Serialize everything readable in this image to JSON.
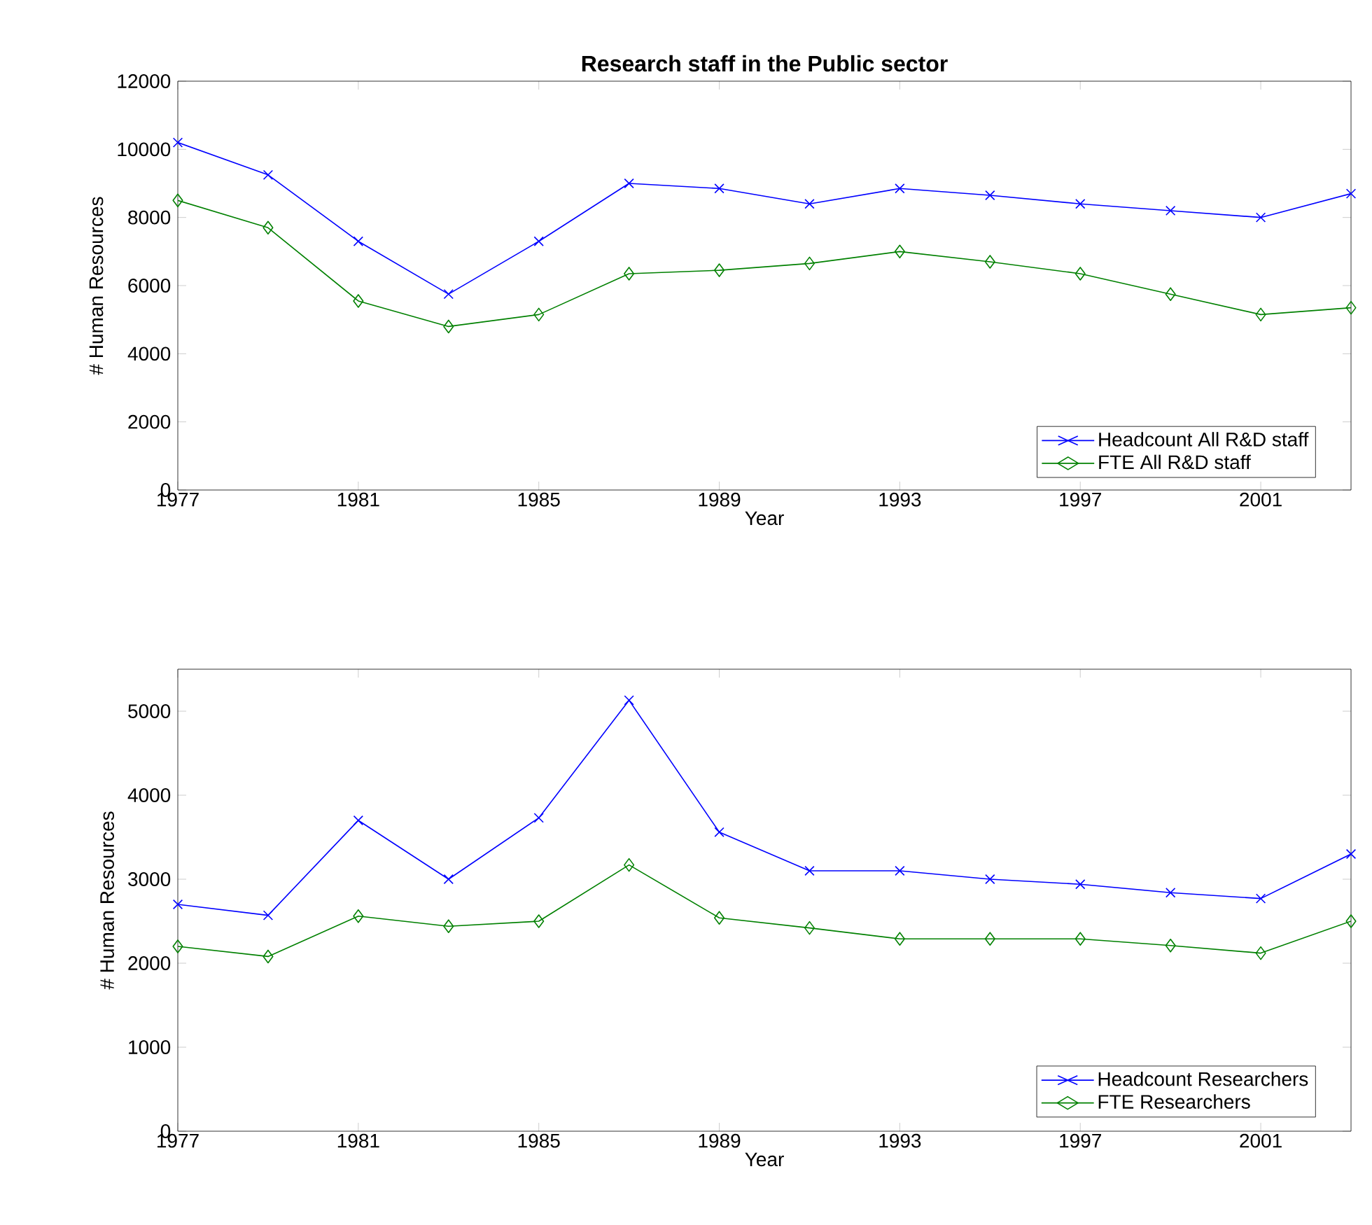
{
  "chart_data": [
    {
      "type": "line",
      "title": "Research staff in the Public sector",
      "xlabel": "Year",
      "ylabel": "# Human Resources",
      "x": [
        1977,
        1979,
        1981,
        1983,
        1985,
        1987,
        1989,
        1991,
        1993,
        1995,
        1997,
        1999,
        2001,
        2003
      ],
      "xlim": [
        1977,
        2003
      ],
      "xticks": [
        1977,
        1981,
        1985,
        1989,
        1993,
        1997,
        2001
      ],
      "ylim": [
        0,
        12000
      ],
      "yticks": [
        0,
        2000,
        4000,
        6000,
        8000,
        10000,
        12000
      ],
      "legend": "bottom right",
      "grid": false,
      "series": [
        {
          "name": "Headcount All R&D staff",
          "color": "#0000ff",
          "marker": "cross",
          "values": [
            10200,
            9250,
            7300,
            5750,
            7300,
            9000,
            8850,
            8400,
            8850,
            8650,
            8400,
            8200,
            8000,
            8700
          ]
        },
        {
          "name": "FTE All R&D staff",
          "color": "#008000",
          "marker": "diamond",
          "values": [
            8500,
            7700,
            5550,
            4800,
            5150,
            6350,
            6450,
            6650,
            7000,
            6700,
            6350,
            5750,
            5150,
            5350
          ]
        }
      ]
    },
    {
      "type": "line",
      "xlabel": "Year",
      "ylabel": "# Human Resources",
      "x": [
        1977,
        1979,
        1981,
        1983,
        1985,
        1987,
        1989,
        1991,
        1993,
        1995,
        1997,
        1999,
        2001,
        2003
      ],
      "xlim": [
        1977,
        2003
      ],
      "xticks": [
        1977,
        1981,
        1985,
        1989,
        1993,
        1997,
        2001
      ],
      "ylim": [
        0,
        5500
      ],
      "yticks": [
        0,
        1000,
        2000,
        3000,
        4000,
        5000
      ],
      "legend": "bottom right",
      "grid": false,
      "series": [
        {
          "name": "Headcount Researchers",
          "color": "#0000ff",
          "marker": "cross",
          "values": [
            2700,
            2570,
            3700,
            3000,
            3730,
            5130,
            3560,
            3100,
            3100,
            3000,
            2940,
            2840,
            2770,
            3300
          ]
        },
        {
          "name": "FTE Researchers",
          "color": "#008000",
          "marker": "diamond",
          "values": [
            2200,
            2080,
            2560,
            2440,
            2500,
            3170,
            2540,
            2420,
            2290,
            2290,
            2290,
            2210,
            2120,
            2500
          ]
        }
      ]
    }
  ]
}
